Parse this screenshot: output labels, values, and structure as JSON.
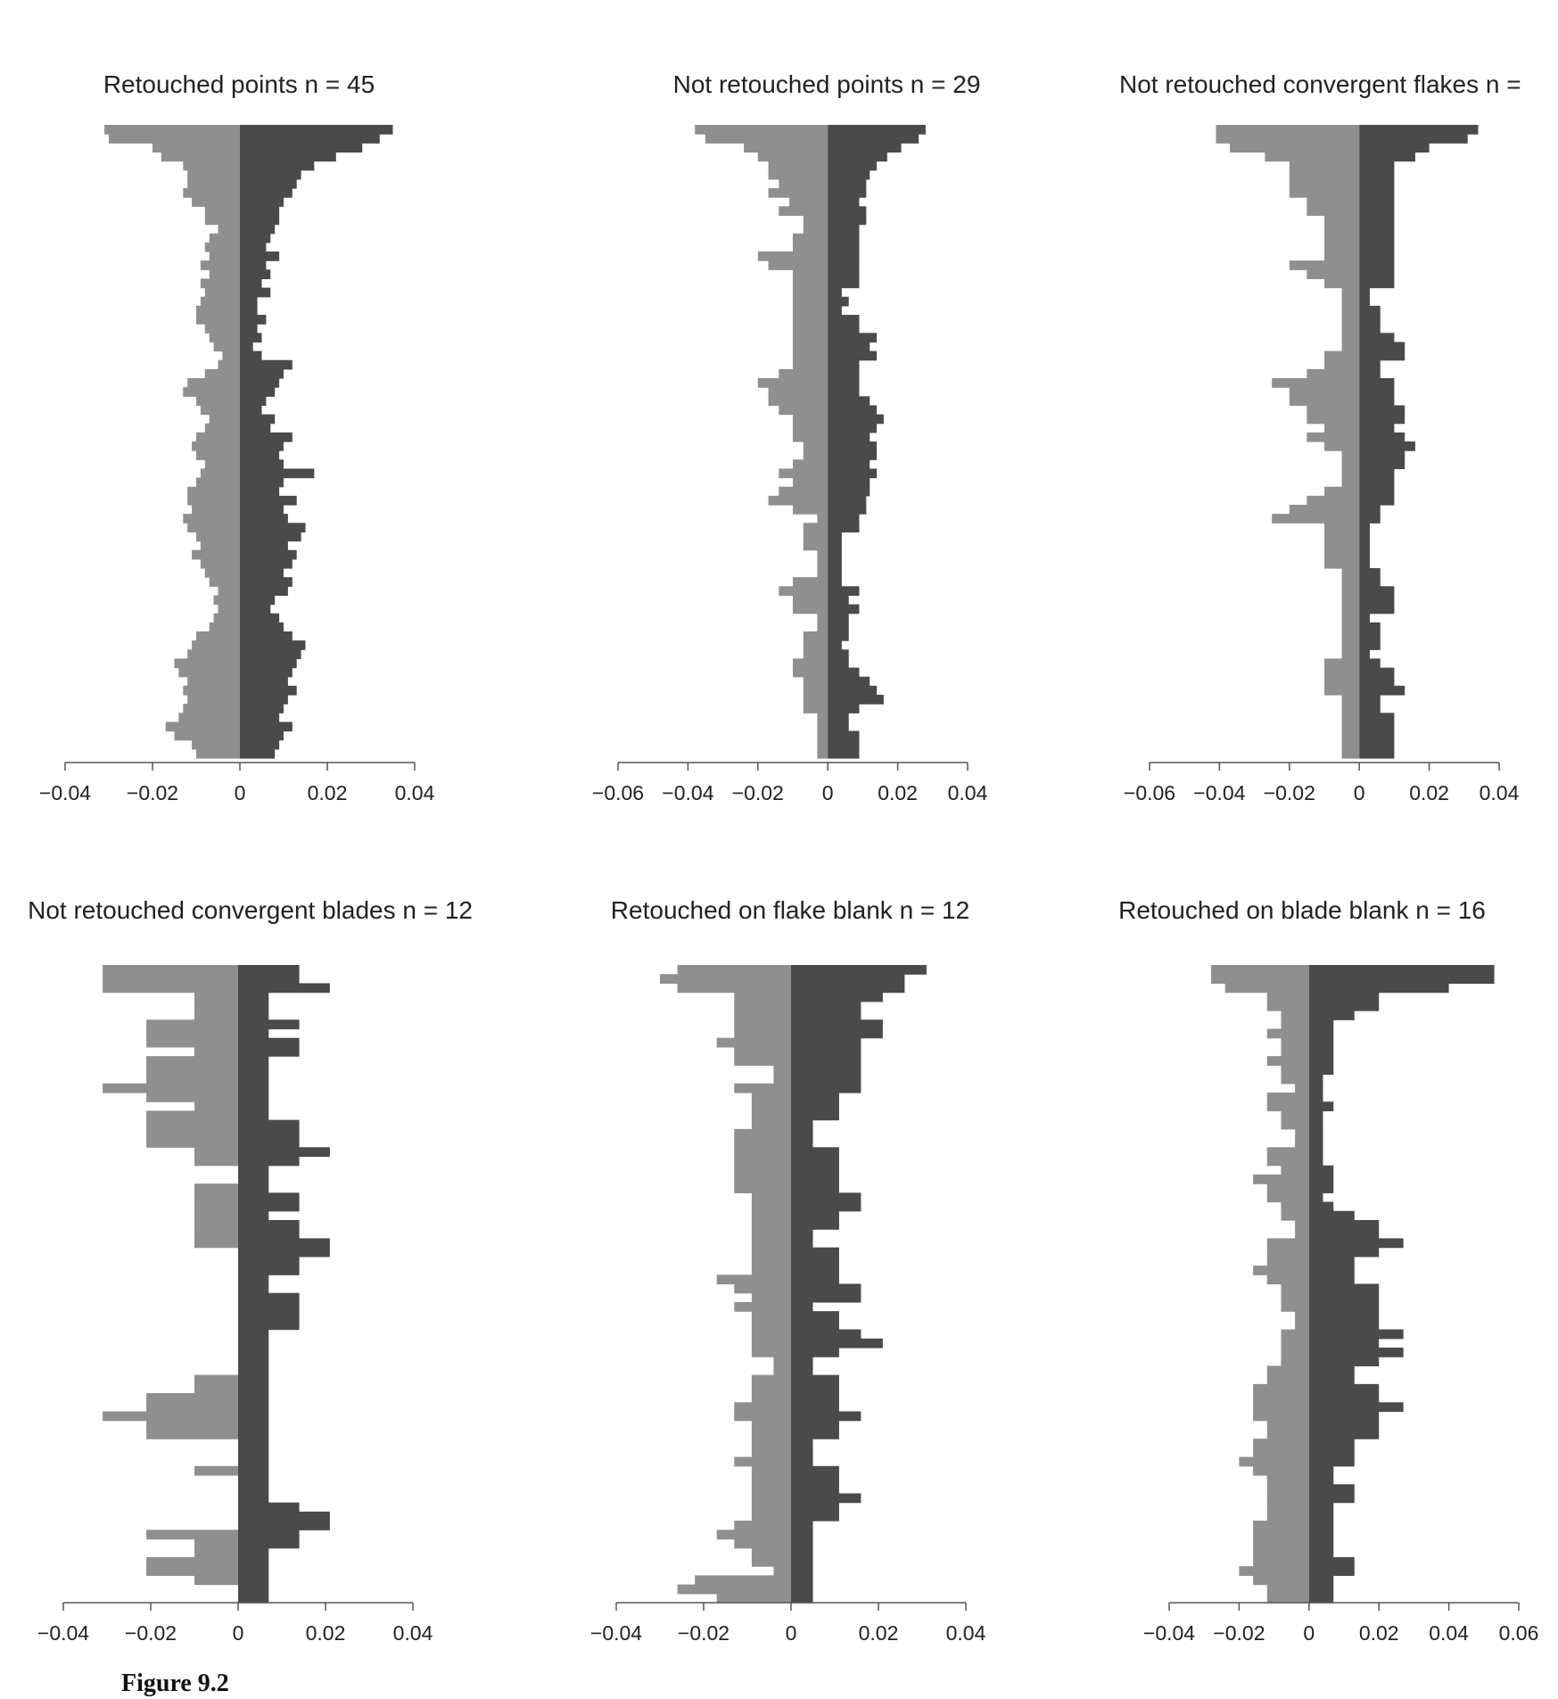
{
  "figure_caption": "Figure 9.2",
  "colors": {
    "left_bars": "#8f8f8f",
    "right_bars": "#4a4a4a",
    "axis": "#555555",
    "text": "#222222"
  },
  "chart_data": [
    {
      "type": "bar",
      "orientation": "horizontal-mirrored",
      "title": "Retouched points n = 45",
      "xlim": [
        -0.04,
        0.04
      ],
      "xticks": [
        -0.04,
        -0.02,
        0,
        0.02,
        0.04
      ],
      "xtick_labels": [
        "−0.04",
        "−0.02",
        "0",
        "0.02",
        "0.04"
      ],
      "left": [
        -0.031,
        -0.03,
        -0.02,
        -0.018,
        -0.013,
        -0.012,
        -0.012,
        -0.013,
        -0.011,
        -0.008,
        -0.008,
        -0.005,
        -0.007,
        -0.008,
        -0.007,
        -0.009,
        -0.007,
        -0.009,
        -0.008,
        -0.009,
        -0.01,
        -0.01,
        -0.008,
        -0.007,
        -0.006,
        -0.004,
        -0.005,
        -0.008,
        -0.012,
        -0.013,
        -0.01,
        -0.009,
        -0.007,
        -0.008,
        -0.01,
        -0.011,
        -0.01,
        -0.008,
        -0.009,
        -0.01,
        -0.012,
        -0.012,
        -0.011,
        -0.013,
        -0.012,
        -0.01,
        -0.009,
        -0.011,
        -0.009,
        -0.008,
        -0.007,
        -0.005,
        -0.006,
        -0.005,
        -0.006,
        -0.007,
        -0.01,
        -0.011,
        -0.012,
        -0.015,
        -0.014,
        -0.012,
        -0.013,
        -0.012,
        -0.013,
        -0.014,
        -0.017,
        -0.015,
        -0.011,
        -0.01
      ],
      "right": [
        0.035,
        0.032,
        0.028,
        0.022,
        0.017,
        0.014,
        0.013,
        0.012,
        0.01,
        0.009,
        0.009,
        0.008,
        0.007,
        0.006,
        0.009,
        0.006,
        0.007,
        0.005,
        0.007,
        0.004,
        0.004,
        0.006,
        0.004,
        0.005,
        0.003,
        0.005,
        0.012,
        0.01,
        0.009,
        0.008,
        0.006,
        0.005,
        0.008,
        0.007,
        0.012,
        0.01,
        0.009,
        0.01,
        0.017,
        0.01,
        0.009,
        0.013,
        0.01,
        0.011,
        0.015,
        0.014,
        0.011,
        0.013,
        0.012,
        0.01,
        0.012,
        0.011,
        0.008,
        0.007,
        0.009,
        0.01,
        0.012,
        0.015,
        0.014,
        0.013,
        0.012,
        0.011,
        0.013,
        0.011,
        0.01,
        0.009,
        0.012,
        0.01,
        0.009,
        0.008
      ]
    },
    {
      "type": "bar",
      "orientation": "horizontal-mirrored",
      "title": "Not retouched points n = 29",
      "xlim": [
        -0.06,
        0.04
      ],
      "xticks": [
        -0.06,
        -0.04,
        -0.02,
        0,
        0.02,
        0.04
      ],
      "xtick_labels": [
        "−0.06",
        "−0.04",
        "−0.02",
        "0",
        "0.02",
        "0.04"
      ],
      "left": [
        -0.038,
        -0.035,
        -0.024,
        -0.02,
        -0.017,
        -0.017,
        -0.014,
        -0.017,
        -0.011,
        -0.014,
        -0.007,
        -0.007,
        -0.01,
        -0.01,
        -0.02,
        -0.017,
        -0.01,
        -0.01,
        -0.01,
        -0.01,
        -0.01,
        -0.01,
        -0.01,
        -0.01,
        -0.01,
        -0.01,
        -0.01,
        -0.014,
        -0.02,
        -0.017,
        -0.017,
        -0.014,
        -0.01,
        -0.01,
        -0.01,
        -0.007,
        -0.007,
        -0.01,
        -0.014,
        -0.01,
        -0.014,
        -0.017,
        -0.01,
        -0.003,
        -0.007,
        -0.007,
        -0.007,
        -0.003,
        -0.003,
        -0.003,
        -0.01,
        -0.014,
        -0.01,
        -0.01,
        -0.003,
        -0.003,
        -0.007,
        -0.007,
        -0.007,
        -0.01,
        -0.01,
        -0.007,
        -0.007,
        -0.007,
        -0.007,
        -0.003,
        -0.003,
        -0.003,
        -0.003,
        -0.003
      ],
      "right": [
        0.028,
        0.026,
        0.021,
        0.017,
        0.014,
        0.012,
        0.011,
        0.011,
        0.009,
        0.011,
        0.011,
        0.009,
        0.009,
        0.009,
        0.009,
        0.009,
        0.009,
        0.009,
        0.004,
        0.006,
        0.004,
        0.009,
        0.009,
        0.014,
        0.012,
        0.014,
        0.009,
        0.009,
        0.009,
        0.009,
        0.012,
        0.014,
        0.016,
        0.014,
        0.012,
        0.014,
        0.014,
        0.012,
        0.014,
        0.012,
        0.012,
        0.011,
        0.011,
        0.009,
        0.009,
        0.004,
        0.004,
        0.004,
        0.004,
        0.004,
        0.004,
        0.009,
        0.006,
        0.009,
        0.006,
        0.006,
        0.006,
        0.004,
        0.006,
        0.006,
        0.009,
        0.012,
        0.014,
        0.016,
        0.009,
        0.006,
        0.006,
        0.009,
        0.009,
        0.009
      ]
    },
    {
      "type": "bar",
      "orientation": "horizontal-mirrored",
      "title": "Not retouched convergent flakes n = ",
      "xlim": [
        -0.06,
        0.04
      ],
      "xticks": [
        -0.06,
        -0.04,
        -0.02,
        0,
        0.02,
        0.04
      ],
      "xtick_labels": [
        "−0.06",
        "−0.04",
        "−0.02",
        "0",
        "0.02",
        "0.04"
      ],
      "left": [
        -0.041,
        -0.041,
        -0.037,
        -0.027,
        -0.02,
        -0.02,
        -0.02,
        -0.02,
        -0.015,
        -0.015,
        -0.01,
        -0.01,
        -0.01,
        -0.01,
        -0.01,
        -0.02,
        -0.015,
        -0.01,
        -0.005,
        -0.005,
        -0.005,
        -0.005,
        -0.005,
        -0.005,
        -0.005,
        -0.01,
        -0.01,
        -0.015,
        -0.025,
        -0.02,
        -0.02,
        -0.015,
        -0.015,
        -0.01,
        -0.015,
        -0.01,
        -0.005,
        -0.005,
        -0.005,
        -0.005,
        -0.01,
        -0.015,
        -0.02,
        -0.025,
        -0.01,
        -0.01,
        -0.01,
        -0.01,
        -0.01,
        -0.005,
        -0.005,
        -0.005,
        -0.005,
        -0.005,
        -0.005,
        -0.005,
        -0.005,
        -0.005,
        -0.005,
        -0.01,
        -0.01,
        -0.01,
        -0.01,
        -0.005,
        -0.005,
        -0.005,
        -0.005,
        -0.005,
        -0.005,
        -0.005
      ],
      "right": [
        0.034,
        0.031,
        0.02,
        0.016,
        0.01,
        0.01,
        0.01,
        0.01,
        0.01,
        0.01,
        0.01,
        0.01,
        0.01,
        0.01,
        0.01,
        0.01,
        0.01,
        0.01,
        0.003,
        0.003,
        0.006,
        0.006,
        0.006,
        0.01,
        0.013,
        0.013,
        0.006,
        0.006,
        0.01,
        0.01,
        0.01,
        0.013,
        0.013,
        0.01,
        0.013,
        0.016,
        0.013,
        0.013,
        0.01,
        0.01,
        0.01,
        0.01,
        0.006,
        0.006,
        0.003,
        0.003,
        0.003,
        0.003,
        0.003,
        0.006,
        0.006,
        0.01,
        0.01,
        0.01,
        0.003,
        0.006,
        0.006,
        0.006,
        0.003,
        0.006,
        0.01,
        0.01,
        0.013,
        0.006,
        0.006,
        0.01,
        0.01,
        0.01,
        0.01,
        0.01
      ]
    },
    {
      "type": "bar",
      "orientation": "horizontal-mirrored",
      "title": "Not retouched convergent blades n = 12",
      "xlim": [
        -0.04,
        0.04
      ],
      "xticks": [
        -0.04,
        -0.02,
        0,
        0.02,
        0.04
      ],
      "xtick_labels": [
        "−0.04",
        "−0.02",
        "0",
        "0.02",
        "0.04"
      ],
      "left": [
        -0.031,
        -0.031,
        -0.031,
        -0.01,
        -0.01,
        -0.01,
        -0.021,
        -0.021,
        -0.021,
        -0.01,
        -0.021,
        -0.021,
        -0.021,
        -0.031,
        -0.021,
        -0.01,
        -0.021,
        -0.021,
        -0.021,
        -0.021,
        -0.01,
        -0.01,
        0,
        0,
        -0.01,
        -0.01,
        -0.01,
        -0.01,
        -0.01,
        -0.01,
        -0.01,
        0,
        0,
        0,
        0,
        0,
        0,
        0,
        0,
        0,
        0,
        0,
        0,
        0,
        0,
        -0.01,
        -0.01,
        -0.021,
        -0.021,
        -0.031,
        -0.021,
        -0.021,
        0,
        0,
        0,
        -0.01,
        0,
        0,
        0,
        0,
        0,
        0,
        -0.021,
        -0.01,
        -0.01,
        -0.021,
        -0.021,
        -0.01,
        0,
        0
      ],
      "right": [
        0.014,
        0.014,
        0.021,
        0.007,
        0.007,
        0.007,
        0.014,
        0.007,
        0.014,
        0.014,
        0.007,
        0.007,
        0.007,
        0.007,
        0.007,
        0.007,
        0.007,
        0.014,
        0.014,
        0.014,
        0.021,
        0.014,
        0.007,
        0.007,
        0.007,
        0.014,
        0.014,
        0.007,
        0.014,
        0.014,
        0.021,
        0.021,
        0.014,
        0.014,
        0.007,
        0.007,
        0.014,
        0.014,
        0.014,
        0.014,
        0.007,
        0.007,
        0.007,
        0.007,
        0.007,
        0.007,
        0.007,
        0.007,
        0.007,
        0.007,
        0.007,
        0.007,
        0.007,
        0.007,
        0.007,
        0.007,
        0.007,
        0.007,
        0.007,
        0.014,
        0.021,
        0.021,
        0.014,
        0.014,
        0.007,
        0.007,
        0.007,
        0.007,
        0.007,
        0.007
      ]
    },
    {
      "type": "bar",
      "orientation": "horizontal-mirrored",
      "title": "Retouched on flake blank n = 12",
      "xlim": [
        -0.04,
        0.04
      ],
      "xticks": [
        -0.04,
        -0.02,
        0,
        0.02,
        0.04
      ],
      "xtick_labels": [
        "−0.04",
        "−0.02",
        "0",
        "0.02",
        "0.04"
      ],
      "left": [
        -0.026,
        -0.03,
        -0.026,
        -0.013,
        -0.013,
        -0.013,
        -0.013,
        -0.013,
        -0.017,
        -0.013,
        -0.013,
        -0.004,
        -0.004,
        -0.013,
        -0.009,
        -0.009,
        -0.009,
        -0.009,
        -0.013,
        -0.013,
        -0.013,
        -0.013,
        -0.013,
        -0.013,
        -0.013,
        -0.009,
        -0.009,
        -0.009,
        -0.009,
        -0.009,
        -0.009,
        -0.009,
        -0.009,
        -0.009,
        -0.017,
        -0.013,
        -0.009,
        -0.013,
        -0.009,
        -0.009,
        -0.009,
        -0.009,
        -0.009,
        -0.004,
        -0.004,
        -0.009,
        -0.009,
        -0.009,
        -0.013,
        -0.013,
        -0.009,
        -0.009,
        -0.009,
        -0.009,
        -0.013,
        -0.009,
        -0.009,
        -0.009,
        -0.009,
        -0.009,
        -0.009,
        -0.013,
        -0.017,
        -0.013,
        -0.009,
        -0.009,
        -0.004,
        -0.022,
        -0.026,
        -0.017
      ],
      "right": [
        0.031,
        0.026,
        0.026,
        0.021,
        0.016,
        0.016,
        0.021,
        0.021,
        0.016,
        0.016,
        0.016,
        0.016,
        0.016,
        0.016,
        0.011,
        0.011,
        0.011,
        0.005,
        0.005,
        0.005,
        0.011,
        0.011,
        0.011,
        0.011,
        0.011,
        0.016,
        0.016,
        0.011,
        0.011,
        0.005,
        0.005,
        0.011,
        0.011,
        0.011,
        0.011,
        0.016,
        0.016,
        0.005,
        0.011,
        0.011,
        0.016,
        0.021,
        0.011,
        0.005,
        0.005,
        0.011,
        0.011,
        0.011,
        0.011,
        0.016,
        0.011,
        0.011,
        0.005,
        0.005,
        0.005,
        0.011,
        0.011,
        0.011,
        0.016,
        0.011,
        0.011,
        0.005,
        0.005,
        0.005,
        0.005,
        0.005,
        0.005,
        0.005,
        0.005,
        0.005
      ]
    },
    {
      "type": "bar",
      "orientation": "horizontal-mirrored",
      "title": "Retouched on blade blank n = 16",
      "xlim": [
        -0.04,
        0.06
      ],
      "xticks": [
        -0.04,
        -0.02,
        0,
        0.02,
        0.04,
        0.06
      ],
      "xtick_labels": [
        "−0.04",
        "−0.02",
        "0",
        "0.02",
        "0.04",
        "0.06"
      ],
      "left": [
        -0.028,
        -0.028,
        -0.024,
        -0.012,
        -0.012,
        -0.008,
        -0.008,
        -0.012,
        -0.008,
        -0.008,
        -0.012,
        -0.008,
        -0.008,
        -0.004,
        -0.012,
        -0.012,
        -0.008,
        -0.008,
        -0.004,
        -0.004,
        -0.012,
        -0.012,
        -0.008,
        -0.016,
        -0.012,
        -0.012,
        -0.008,
        -0.008,
        -0.004,
        -0.004,
        -0.012,
        -0.012,
        -0.012,
        -0.016,
        -0.012,
        -0.008,
        -0.008,
        -0.008,
        -0.004,
        -0.004,
        -0.008,
        -0.008,
        -0.008,
        -0.008,
        -0.012,
        -0.012,
        -0.016,
        -0.016,
        -0.016,
        -0.016,
        -0.012,
        -0.012,
        -0.016,
        -0.016,
        -0.02,
        -0.016,
        -0.012,
        -0.012,
        -0.012,
        -0.012,
        -0.012,
        -0.016,
        -0.016,
        -0.016,
        -0.016,
        -0.016,
        -0.02,
        -0.016,
        -0.012,
        -0.012
      ],
      "right": [
        0.053,
        0.053,
        0.04,
        0.02,
        0.02,
        0.013,
        0.007,
        0.007,
        0.007,
        0.007,
        0.007,
        0.007,
        0.004,
        0.004,
        0.004,
        0.007,
        0.004,
        0.004,
        0.004,
        0.004,
        0.004,
        0.004,
        0.007,
        0.007,
        0.007,
        0.004,
        0.007,
        0.013,
        0.02,
        0.02,
        0.027,
        0.02,
        0.013,
        0.013,
        0.013,
        0.02,
        0.02,
        0.02,
        0.02,
        0.02,
        0.027,
        0.02,
        0.027,
        0.02,
        0.013,
        0.013,
        0.02,
        0.02,
        0.027,
        0.02,
        0.02,
        0.02,
        0.013,
        0.013,
        0.013,
        0.007,
        0.007,
        0.013,
        0.013,
        0.007,
        0.007,
        0.007,
        0.007,
        0.007,
        0.007,
        0.013,
        0.013,
        0.007,
        0.007,
        0.007
      ]
    }
  ]
}
